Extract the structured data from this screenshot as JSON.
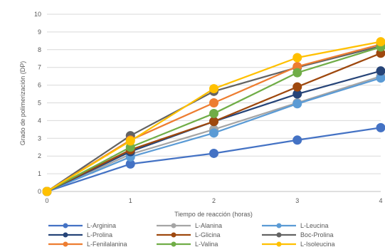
{
  "chart_data": {
    "type": "line",
    "title": "",
    "xlabel": "Tiempo de reacción (horas)",
    "ylabel": "Grado de polimerización (DP)",
    "x": [
      0,
      1,
      2,
      3,
      4
    ],
    "xlim": [
      0,
      4
    ],
    "ylim": [
      0,
      10
    ],
    "yticks": [
      0,
      1,
      2,
      3,
      4,
      5,
      6,
      7,
      8,
      9,
      10
    ],
    "grid": true,
    "legend_position": "bottom",
    "series": [
      {
        "name": "L-Arginina",
        "color": "#4472C4",
        "values": [
          0,
          1.55,
          2.15,
          2.9,
          3.6
        ]
      },
      {
        "name": "L-Alanina",
        "color": "#A5A5A5",
        "values": [
          0,
          2.1,
          3.5,
          5.0,
          6.5
        ]
      },
      {
        "name": "L-Leucina",
        "color": "#5B9BD5",
        "values": [
          0,
          1.95,
          3.3,
          4.95,
          6.4
        ]
      },
      {
        "name": "L-Prolina",
        "color": "#264478",
        "values": [
          0,
          2.25,
          3.95,
          5.5,
          6.8
        ]
      },
      {
        "name": "L-Glicina",
        "color": "#9E480E",
        "values": [
          0,
          2.35,
          3.95,
          5.9,
          7.8
        ]
      },
      {
        "name": "Boc-Prolina",
        "color": "#636363",
        "values": [
          0,
          3.15,
          5.65,
          7.0,
          8.2
        ]
      },
      {
        "name": "L-Fenilalanina",
        "color": "#ED7D31",
        "values": [
          0,
          2.9,
          5.0,
          7.05,
          8.3
        ]
      },
      {
        "name": "L-Valina",
        "color": "#70AD47",
        "values": [
          0,
          2.5,
          4.4,
          6.7,
          8.15
        ]
      },
      {
        "name": "L-Isoleucina",
        "color": "#FFC000",
        "values": [
          0,
          2.85,
          5.8,
          7.55,
          8.45
        ]
      }
    ]
  }
}
